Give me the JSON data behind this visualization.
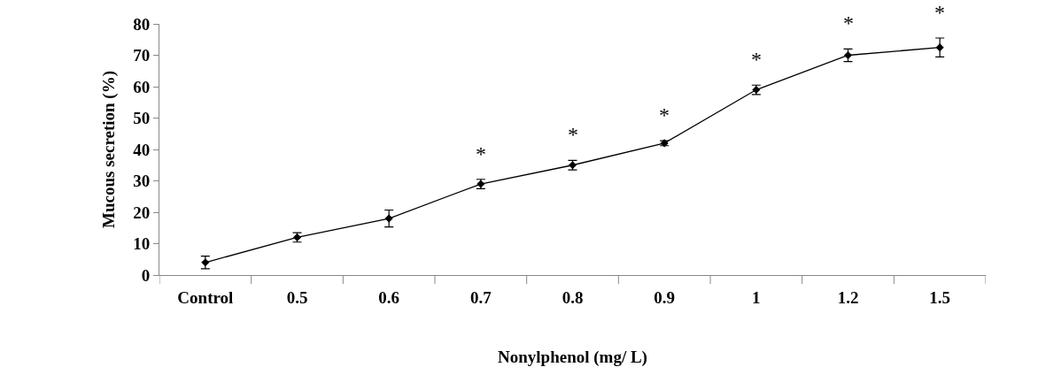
{
  "chart_data": {
    "type": "line",
    "xlabel": "Nonylphenol (mg/ L)",
    "ylabel": "Mucous secretion (%)",
    "categories": [
      "Control",
      "0.5",
      "0.6",
      "0.7",
      "0.8",
      "0.9",
      "1",
      "1.2",
      "1.5"
    ],
    "series": [
      {
        "color": "#000000",
        "values": [
          4,
          12,
          18,
          29,
          35,
          42,
          59,
          70,
          72.5
        ],
        "errors": [
          2,
          1.5,
          2.7,
          1.5,
          1.5,
          0.8,
          1.5,
          2,
          3
        ]
      }
    ],
    "ylim": [
      0,
      80
    ],
    "yticks": [
      0,
      10,
      20,
      30,
      40,
      50,
      60,
      70,
      80
    ],
    "marker": "diamond",
    "line_style": "solid",
    "annotations": [
      "*",
      "*",
      "*",
      "*",
      "*",
      "*"
    ]
  }
}
